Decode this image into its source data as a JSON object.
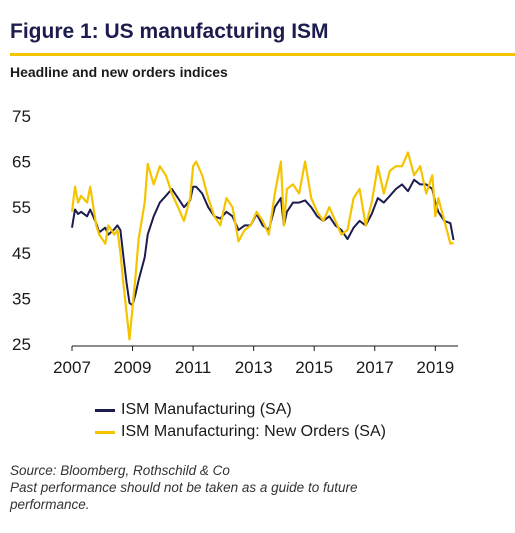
{
  "header": {
    "title": "Figure 1: US manufacturing ISM",
    "subtitle": "Headline and new orders indices"
  },
  "footer": {
    "source_line_1": "Source: Bloomberg, Rothschild & Co",
    "source_line_2": "Past performance should not be taken as a guide to future",
    "source_line_3": "performance."
  },
  "colors": {
    "accent_rule": "#f5c400",
    "title": "#1c1c4e"
  },
  "chart_data": {
    "type": "line",
    "title": "",
    "xlabel": "",
    "ylabel": "",
    "xlim": [
      2007.0,
      2019.75
    ],
    "ylim": [
      25,
      75
    ],
    "yticks": [
      25,
      35,
      45,
      55,
      65,
      75
    ],
    "xticks": [
      2007,
      2009,
      2011,
      2013,
      2015,
      2017,
      2019
    ],
    "grid": false,
    "legend_position": "bottom",
    "series": [
      {
        "name": "ISM Manufacturing (SA)",
        "color": "#1c1c4e",
        "x": [
          2007.0,
          2007.1,
          2007.2,
          2007.3,
          2007.5,
          2007.6,
          2007.8,
          2007.9,
          2008.1,
          2008.2,
          2008.4,
          2008.5,
          2008.6,
          2008.7,
          2008.8,
          2008.9,
          2009.0,
          2009.1,
          2009.2,
          2009.4,
          2009.5,
          2009.7,
          2009.9,
          2010.1,
          2010.3,
          2010.5,
          2010.7,
          2010.9,
          2011.0,
          2011.1,
          2011.3,
          2011.5,
          2011.7,
          2011.9,
          2012.1,
          2012.3,
          2012.5,
          2012.7,
          2012.9,
          2013.1,
          2013.3,
          2013.5,
          2013.7,
          2013.9,
          2014.0,
          2014.1,
          2014.3,
          2014.5,
          2014.7,
          2014.9,
          2015.1,
          2015.3,
          2015.5,
          2015.7,
          2015.9,
          2016.1,
          2016.3,
          2016.5,
          2016.7,
          2016.9,
          2017.1,
          2017.3,
          2017.5,
          2017.7,
          2017.9,
          2018.1,
          2018.3,
          2018.5,
          2018.7,
          2018.9,
          2019.0,
          2019.1,
          2019.3,
          2019.5,
          2019.6
        ],
        "values": [
          50.5,
          54.5,
          53.5,
          54,
          53,
          54.5,
          51.5,
          49.5,
          50.5,
          49,
          50.2,
          51,
          50,
          44,
          38.5,
          34,
          33.5,
          36,
          39,
          44,
          49,
          53,
          56,
          57.5,
          59,
          57,
          55,
          56.5,
          59.5,
          59.5,
          58,
          55,
          53,
          52.5,
          54,
          53,
          50,
          51,
          51,
          53.5,
          51,
          50,
          55,
          57,
          51,
          54,
          56,
          56,
          56.5,
          55,
          53,
          52,
          53,
          51,
          50,
          48,
          50.5,
          52,
          51,
          53.5,
          57,
          56,
          57.5,
          59,
          60,
          58.5,
          61,
          60,
          60,
          59,
          56,
          54,
          52,
          51.5,
          47.8
        ]
      },
      {
        "name": "ISM Manufacturing: New Orders (SA)",
        "color": "#f5c400",
        "x": [
          2007.0,
          2007.1,
          2007.2,
          2007.3,
          2007.5,
          2007.6,
          2007.8,
          2007.9,
          2008.1,
          2008.2,
          2008.4,
          2008.5,
          2008.6,
          2008.7,
          2008.8,
          2008.9,
          2009.0,
          2009.1,
          2009.2,
          2009.4,
          2009.5,
          2009.7,
          2009.9,
          2010.1,
          2010.3,
          2010.5,
          2010.7,
          2010.9,
          2011.0,
          2011.1,
          2011.3,
          2011.5,
          2011.7,
          2011.9,
          2012.1,
          2012.3,
          2012.5,
          2012.7,
          2012.9,
          2013.1,
          2013.3,
          2013.5,
          2013.7,
          2013.9,
          2014.0,
          2014.1,
          2014.3,
          2014.5,
          2014.7,
          2014.9,
          2015.1,
          2015.3,
          2015.5,
          2015.7,
          2015.9,
          2016.1,
          2016.3,
          2016.5,
          2016.7,
          2016.9,
          2017.1,
          2017.3,
          2017.5,
          2017.7,
          2017.9,
          2018.1,
          2018.3,
          2018.5,
          2018.7,
          2018.9,
          2019.0,
          2019.1,
          2019.3,
          2019.5,
          2019.6
        ],
        "values": [
          54,
          59.5,
          56,
          57.5,
          56,
          59.5,
          51,
          49,
          47,
          51,
          49,
          50,
          45,
          38,
          32,
          26,
          33,
          40,
          48,
          56,
          64.5,
          60,
          64,
          62,
          58,
          55,
          52,
          57,
          64,
          65,
          62,
          57,
          53,
          51,
          57,
          55,
          47.5,
          50,
          51,
          54,
          52,
          49,
          58,
          65,
          51,
          59,
          60,
          58,
          65,
          57,
          54,
          52,
          55,
          52,
          49,
          50,
          57,
          59,
          51,
          56,
          64,
          58,
          63,
          64,
          64,
          67,
          62,
          64,
          58,
          62,
          53,
          57,
          52,
          47,
          47.2
        ]
      }
    ]
  }
}
